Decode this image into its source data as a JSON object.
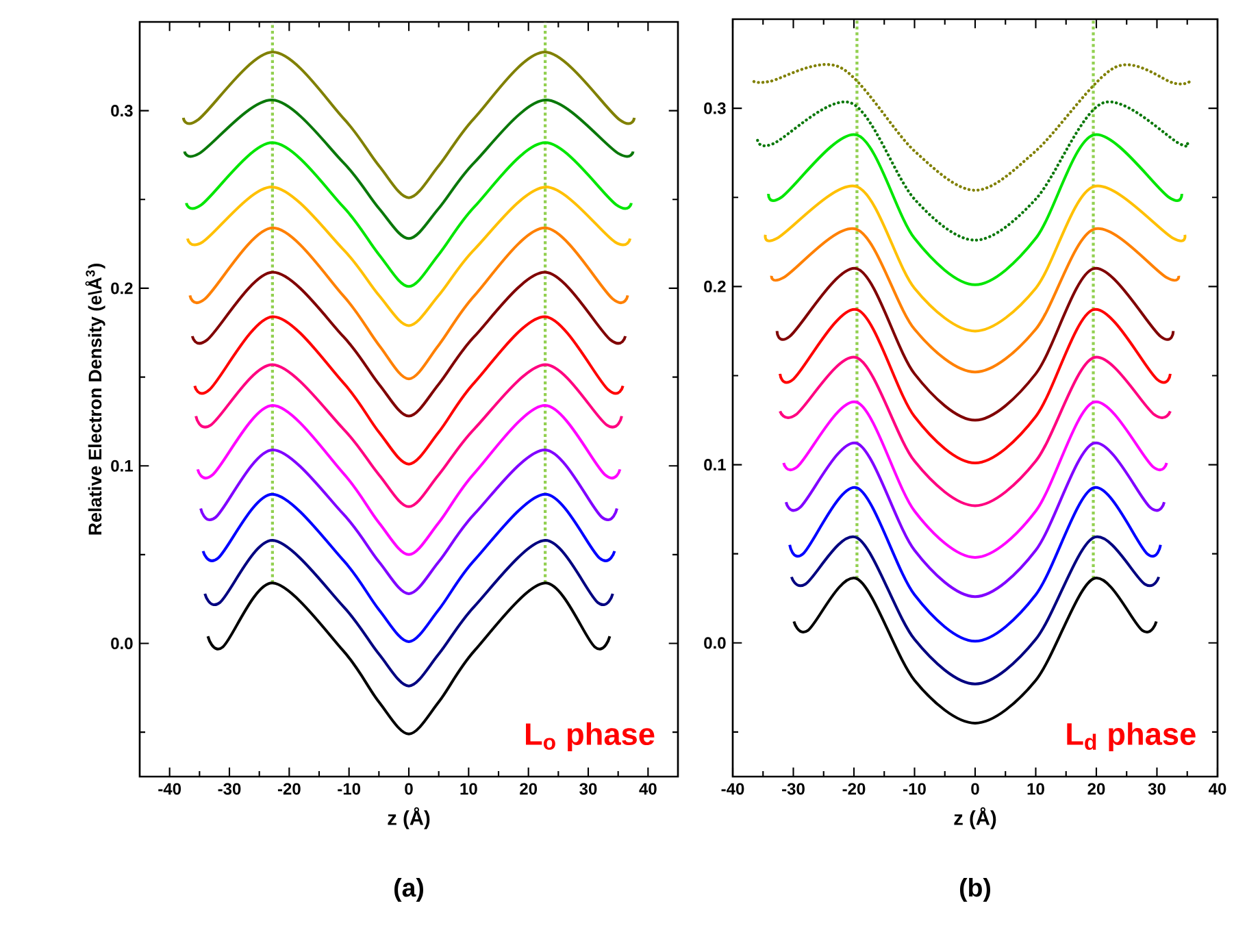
{
  "chart_data": [
    {
      "type": "line",
      "title": "(a)",
      "xlabel": "z (Å)",
      "ylabel": "Relative Electron Density (e\\Å$^{3}$)",
      "annotations": [
        "L$_{o}$ phase"
      ],
      "xlim": [
        -45,
        45
      ],
      "ylim": [
        -0.075,
        0.35
      ],
      "xticks": [
        -40,
        {
          "value": -35,
          "label": null
        },
        -30,
        {
          "value": -25,
          "label": null
        },
        -20,
        {
          "value": -15,
          "label": null
        },
        -10,
        {
          "value": -5,
          "label": null
        },
        0,
        {
          "value": 5,
          "label": null
        },
        10,
        {
          "value": 15,
          "label": null
        },
        20,
        {
          "value": 25,
          "label": null
        },
        30,
        {
          "value": 35,
          "label": null
        },
        40
      ],
      "yticks": [
        {
          "value": -0.05,
          "label": null
        },
        {
          "value": 0,
          "label": "0.0"
        },
        {
          "value": 0.05,
          "label": null
        },
        0.1,
        {
          "value": 0.15,
          "label": null
        },
        0.2,
        {
          "value": 0.25,
          "label": null
        },
        0.3
      ],
      "ref_lines": [
        {
          "axis": "x",
          "value": -22.8,
          "color": "#92d050",
          "line_style": "dotted"
        },
        {
          "axis": "x",
          "value": 22.8,
          "color": "#92d050",
          "line_style": "dotted"
        }
      ],
      "series": [
        {
          "color": "#000000",
          "x": [
            -33.6,
            -31.1,
            -22.8,
            -11,
            -5,
            0,
            5,
            11,
            22.8,
            31.1,
            33.6
          ],
          "values": [
            0.004,
            -0.002,
            0.034,
            -0.004,
            -0.033,
            -0.051,
            -0.033,
            -0.004,
            0.034,
            -0.002,
            0.004
          ]
        },
        {
          "color": "#000080",
          "x": [
            -34.1,
            -31.6,
            -22.8,
            -11,
            -5,
            0,
            5,
            11,
            22.8,
            31.6,
            34.1
          ],
          "values": [
            0.028,
            0.023,
            0.058,
            0.021,
            -0.006,
            -0.024,
            -0.006,
            0.021,
            0.058,
            0.023,
            0.028
          ]
        },
        {
          "color": "#0000ff",
          "x": [
            -34.4,
            -31.9,
            -22.8,
            -11,
            -5,
            0,
            5,
            11,
            22.8,
            31.9,
            34.4
          ],
          "values": [
            0.052,
            0.048,
            0.084,
            0.047,
            0.019,
            0.001,
            0.019,
            0.047,
            0.084,
            0.048,
            0.052
          ]
        },
        {
          "color": "#8000ff",
          "x": [
            -34.8,
            -32.3,
            -22.8,
            -11,
            -5,
            0,
            5,
            11,
            22.8,
            32.3,
            34.8
          ],
          "values": [
            0.076,
            0.071,
            0.109,
            0.073,
            0.046,
            0.028,
            0.046,
            0.073,
            0.109,
            0.071,
            0.076
          ]
        },
        {
          "color": "#ff00ff",
          "x": [
            -35.3,
            -32.8,
            -22.8,
            -11,
            -5,
            0,
            5,
            11,
            22.8,
            32.8,
            35.3
          ],
          "values": [
            0.098,
            0.095,
            0.134,
            0.096,
            0.068,
            0.05,
            0.068,
            0.096,
            0.134,
            0.095,
            0.098
          ]
        },
        {
          "color": "#ff0080",
          "x": [
            -35.6,
            -33.1,
            -22.8,
            -11,
            -5,
            0,
            5,
            11,
            22.8,
            33.1,
            35.6
          ],
          "values": [
            0.128,
            0.123,
            0.157,
            0.121,
            0.095,
            0.077,
            0.095,
            0.121,
            0.157,
            0.123,
            0.128
          ]
        },
        {
          "color": "#ff0000",
          "x": [
            -35.8,
            -33.3,
            -22.8,
            -11,
            -5,
            0,
            5,
            11,
            22.8,
            33.3,
            35.8
          ],
          "values": [
            0.145,
            0.143,
            0.184,
            0.147,
            0.119,
            0.101,
            0.119,
            0.147,
            0.184,
            0.143,
            0.145
          ]
        },
        {
          "color": "#800000",
          "x": [
            -36.2,
            -33.7,
            -22.8,
            -11,
            -5,
            0,
            5,
            11,
            22.8,
            33.7,
            36.2
          ],
          "values": [
            0.173,
            0.171,
            0.209,
            0.173,
            0.146,
            0.128,
            0.146,
            0.173,
            0.209,
            0.171,
            0.173
          ]
        },
        {
          "color": "#ff8000",
          "x": [
            -36.6,
            -34.1,
            -22.8,
            -11,
            -5,
            0,
            5,
            11,
            22.8,
            34.1,
            36.6
          ],
          "values": [
            0.196,
            0.194,
            0.234,
            0.196,
            0.168,
            0.149,
            0.168,
            0.196,
            0.234,
            0.194,
            0.196
          ]
        },
        {
          "color": "#ffc000",
          "x": [
            -37,
            -34.5,
            -22.8,
            -11,
            -5,
            0,
            5,
            11,
            22.8,
            34.5,
            37
          ],
          "values": [
            0.228,
            0.226,
            0.257,
            0.222,
            0.196,
            0.179,
            0.196,
            0.222,
            0.257,
            0.226,
            0.228
          ]
        },
        {
          "color": "#00e600",
          "x": [
            -37.2,
            -34.7,
            -22.8,
            -11,
            -5,
            0,
            5,
            11,
            22.8,
            34.7,
            37.2
          ],
          "values": [
            0.248,
            0.247,
            0.282,
            0.246,
            0.219,
            0.201,
            0.219,
            0.246,
            0.282,
            0.247,
            0.248
          ]
        },
        {
          "color": "#0a780a",
          "x": [
            -37.5,
            -35,
            -22.8,
            -11,
            -5,
            0,
            5,
            11,
            22.8,
            35,
            37.5
          ],
          "values": [
            0.277,
            0.276,
            0.306,
            0.271,
            0.245,
            0.228,
            0.245,
            0.271,
            0.306,
            0.276,
            0.277
          ]
        },
        {
          "color": "#808000",
          "x": [
            -37.7,
            -35.2,
            -22.8,
            -11,
            -5,
            0,
            5,
            11,
            22.8,
            35.2,
            37.7
          ],
          "values": [
            0.296,
            0.295,
            0.333,
            0.296,
            0.269,
            0.251,
            0.269,
            0.296,
            0.333,
            0.295,
            0.296
          ]
        }
      ]
    },
    {
      "type": "line",
      "title": "(b)",
      "xlabel": "z (Å)",
      "annotations": [
        "L$_{d}$ phase"
      ],
      "xlim": [
        -40,
        40
      ],
      "ylim": [
        -0.075,
        0.35
      ],
      "xticks": [
        -40,
        {
          "value": -35,
          "label": null
        },
        -30,
        {
          "value": -25,
          "label": null
        },
        -20,
        {
          "value": -15,
          "label": null
        },
        -10,
        {
          "value": -5,
          "label": null
        },
        0,
        {
          "value": 5,
          "label": null
        },
        10,
        {
          "value": 15,
          "label": null
        },
        20,
        {
          "value": 25,
          "label": null
        },
        30,
        {
          "value": 35,
          "label": null
        },
        40
      ],
      "yticks": [
        {
          "value": -0.05,
          "label": null
        },
        {
          "value": 0,
          "label": "0.0"
        },
        {
          "value": 0.05,
          "label": null
        },
        0.1,
        {
          "value": 0.15,
          "label": null
        },
        0.2,
        {
          "value": 0.25,
          "label": null
        },
        0.3
      ],
      "ref_lines": [
        {
          "axis": "x",
          "value": -19.5,
          "color": "#92d050",
          "line_style": "dotted"
        },
        {
          "axis": "x",
          "value": 19.5,
          "color": "#92d050",
          "line_style": "dotted"
        }
      ],
      "series": [
        {
          "color": "#000000",
          "x": [
            -29.9,
            -27.6,
            -19.5,
            -10,
            0,
            10,
            19.5,
            27.6,
            29.9
          ],
          "values": [
            0.012,
            0.007,
            0.036,
            -0.021,
            -0.045,
            -0.021,
            0.036,
            0.007,
            0.012
          ]
        },
        {
          "color": "#000080",
          "x": [
            -30.3,
            -28,
            -19.5,
            -10,
            0,
            10,
            19.5,
            28,
            30.3
          ],
          "values": [
            0.037,
            0.033,
            0.059,
            0.002,
            -0.023,
            0.002,
            0.059,
            0.033,
            0.037
          ]
        },
        {
          "color": "#0000ff",
          "x": [
            -30.6,
            -28.4,
            -19.5,
            -10,
            0,
            10,
            19.5,
            28.4,
            30.6
          ],
          "values": [
            0.055,
            0.05,
            0.087,
            0.027,
            0.001,
            0.027,
            0.087,
            0.05,
            0.055
          ]
        },
        {
          "color": "#8000ff",
          "x": [
            -31.2,
            -28.9,
            -19.5,
            -10,
            0,
            10,
            19.5,
            28.9,
            31.2
          ],
          "values": [
            0.079,
            0.076,
            0.112,
            0.052,
            0.026,
            0.052,
            0.112,
            0.076,
            0.079
          ]
        },
        {
          "color": "#ff00ff",
          "x": [
            -31.6,
            -29.3,
            -19.5,
            -10,
            0,
            10,
            19.5,
            29.3,
            31.6
          ],
          "values": [
            0.101,
            0.099,
            0.135,
            0.074,
            0.048,
            0.074,
            0.135,
            0.099,
            0.101
          ]
        },
        {
          "color": "#ff0080",
          "x": [
            -32.2,
            -29.6,
            -19.5,
            -10,
            0,
            10,
            19.5,
            29.6,
            32.2
          ],
          "values": [
            0.13,
            0.128,
            0.16,
            0.102,
            0.077,
            0.102,
            0.16,
            0.128,
            0.13
          ]
        },
        {
          "color": "#ff0000",
          "x": [
            -32.2,
            -30,
            -19.5,
            -10,
            0,
            10,
            19.5,
            30,
            32.2
          ],
          "values": [
            0.151,
            0.148,
            0.187,
            0.127,
            0.101,
            0.127,
            0.187,
            0.148,
            0.151
          ]
        },
        {
          "color": "#800000",
          "x": [
            -32.7,
            -30.6,
            -19.5,
            -10,
            0,
            10,
            19.5,
            30.6,
            32.7
          ],
          "values": [
            0.175,
            0.172,
            0.21,
            0.151,
            0.125,
            0.151,
            0.21,
            0.172,
            0.175
          ]
        },
        {
          "color": "#ff8000",
          "x": [
            -33.6,
            -31.6,
            -19.5,
            -10,
            0,
            10,
            19.5,
            31.6,
            33.6
          ],
          "values": [
            0.206,
            0.205,
            0.232,
            0.176,
            0.152,
            0.176,
            0.232,
            0.205,
            0.206
          ]
        },
        {
          "color": "#ffc000",
          "x": [
            -34.6,
            -32.7,
            -19.5,
            -10,
            0,
            10,
            19.5,
            32.7,
            34.6
          ],
          "values": [
            0.229,
            0.227,
            0.256,
            0.199,
            0.175,
            0.199,
            0.256,
            0.227,
            0.229
          ]
        },
        {
          "color": "#00e600",
          "x": [
            -34.1,
            -32,
            -19.5,
            -10,
            0,
            10,
            19.5,
            32,
            34.1
          ],
          "values": [
            0.252,
            0.25,
            0.285,
            0.227,
            0.201,
            0.227,
            0.285,
            0.25,
            0.252
          ]
        },
        {
          "color": "#0a780a",
          "line_style": "dotted",
          "x": [
            -35.9,
            -33.4,
            -20.5,
            -10,
            0,
            10,
            21.1,
            33.8,
            34.9
          ],
          "values": [
            0.282,
            0.28,
            0.303,
            0.249,
            0.226,
            0.249,
            0.303,
            0.28,
            0.281
          ]
        },
        {
          "color": "#808000",
          "line_style": "dotted",
          "x": [
            -36.5,
            -34,
            -22.3,
            -10,
            0,
            10,
            23.1,
            32.9,
            35.4
          ],
          "values": [
            0.315,
            0.315,
            0.323,
            0.276,
            0.254,
            0.276,
            0.323,
            0.314,
            0.315
          ]
        }
      ]
    }
  ]
}
